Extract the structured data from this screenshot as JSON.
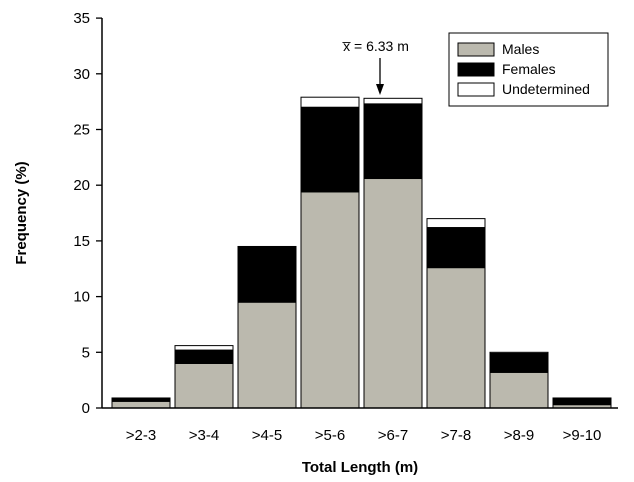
{
  "chart_data": {
    "type": "bar",
    "stacked": true,
    "title": "",
    "xlabel": "Total Length (m)",
    "ylabel": "Frequency (%)",
    "ylim": [
      0,
      35
    ],
    "yticks": [
      0,
      5,
      10,
      15,
      20,
      25,
      30,
      35
    ],
    "grid": false,
    "legend_position": "top-right",
    "categories": [
      ">2-3",
      ">3-4",
      ">4-5",
      ">5-6",
      ">6-7",
      ">7-8",
      ">8-9",
      ">9-10"
    ],
    "series": [
      {
        "name": "Males",
        "color": "#bbb9ae",
        "values": [
          0.6,
          4.0,
          9.5,
          19.4,
          20.6,
          12.6,
          3.2,
          0.3
        ]
      },
      {
        "name": "Females",
        "color": "#000000",
        "values": [
          0.3,
          1.2,
          5.0,
          7.6,
          6.7,
          3.6,
          1.7,
          0.6
        ]
      },
      {
        "name": "Undetermined",
        "color": "#ffffff",
        "values": [
          0.0,
          0.4,
          0.0,
          0.9,
          0.5,
          0.8,
          0.1,
          0.0
        ]
      }
    ],
    "annotation": {
      "text": "x̅ = 6.33 m",
      "x_value": 6.33
    }
  }
}
